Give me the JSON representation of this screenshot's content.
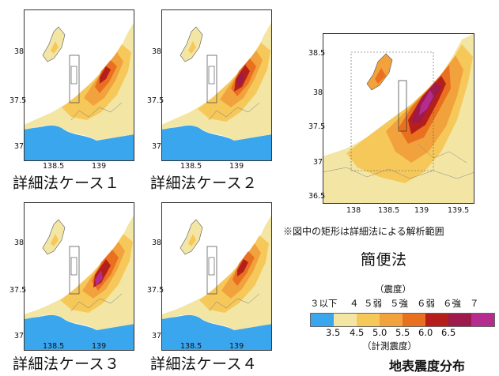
{
  "captions": {
    "case1": "詳細法ケース１",
    "case2": "詳細法ケース２",
    "case3": "詳細法ケース３",
    "case4": "詳細法ケース４",
    "simple": "簡便法"
  },
  "note": "※図中の矩形は詳細法による解析範囲",
  "map_ticks": {
    "small_lat": [
      "38",
      "37.5",
      "37"
    ],
    "small_lon": [
      "138.5",
      "139"
    ],
    "big_lat": [
      "38.5",
      "38",
      "37.5",
      "37",
      "36.5"
    ],
    "big_lon": [
      "138",
      "138.5",
      "139",
      "139.5"
    ]
  },
  "legend": {
    "top_title": "（震度）",
    "intensity_labels": [
      "３以下",
      "４",
      "５弱",
      "５強",
      "６弱",
      "６強",
      "７"
    ],
    "boundary_values": [
      "3.5",
      "4.5",
      "5.0",
      "5.5",
      "6.0",
      "6.5"
    ],
    "bottom_title": "（計測震度）",
    "colors": [
      "#3aa6ee",
      "#f3e6a4",
      "#f6c85a",
      "#f2a23c",
      "#e9701f",
      "#b51e1a",
      "#9e1a4d",
      "#b52c8f"
    ]
  },
  "title": "地表震度分布"
}
